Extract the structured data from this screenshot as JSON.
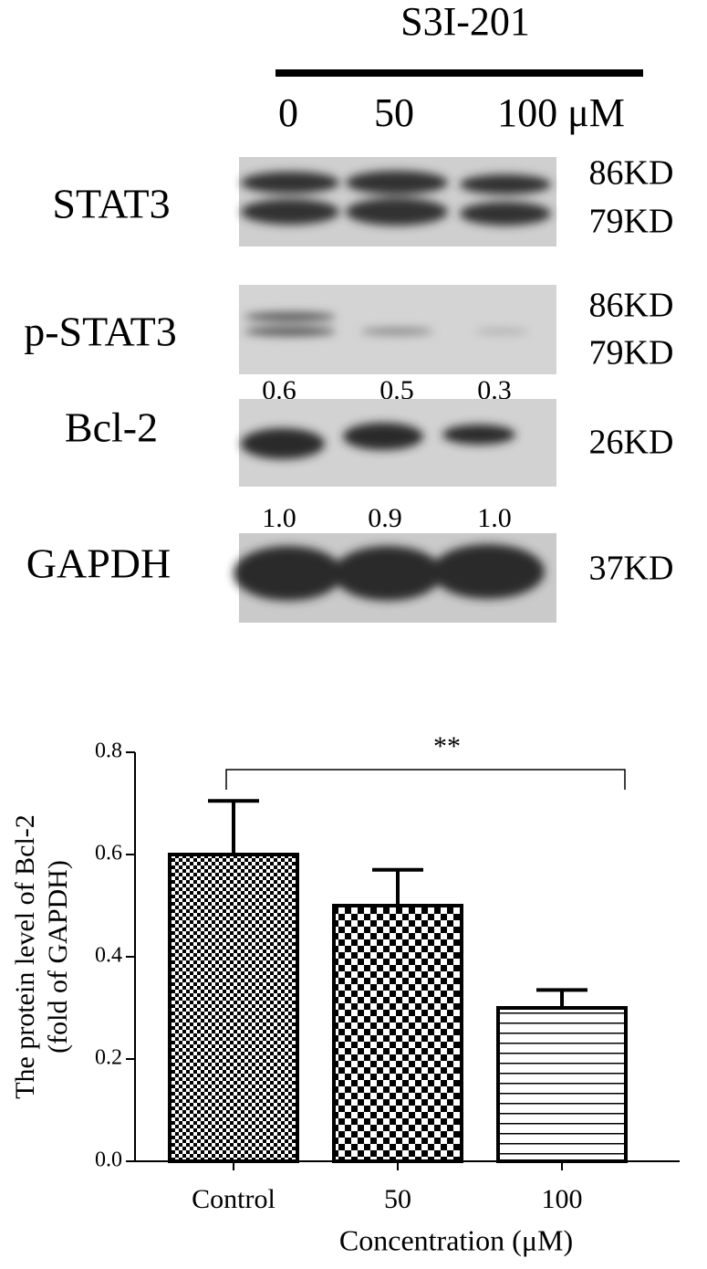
{
  "blot": {
    "treatment": "S3I-201",
    "lanes": [
      "0",
      "50",
      "100 μM"
    ],
    "rows": [
      {
        "label": "STAT3",
        "kd": [
          "86KD",
          "79KD"
        ]
      },
      {
        "label": "p-STAT3",
        "kd": [
          "86KD",
          "79KD"
        ]
      },
      {
        "label": "Bcl-2",
        "kd": [
          "26KD"
        ],
        "quant": [
          "0.6",
          "0.5",
          "0.3"
        ]
      },
      {
        "label": "GAPDH",
        "kd": [
          "37KD"
        ],
        "quant": [
          "1.0",
          "0.9",
          "1.0"
        ]
      }
    ]
  },
  "chart_data": {
    "type": "bar",
    "categories": [
      "Control",
      "50",
      "100"
    ],
    "values": [
      0.6,
      0.5,
      0.3
    ],
    "errors": [
      0.105,
      0.07,
      0.035
    ],
    "ylim": [
      0,
      0.8
    ],
    "yticks": [
      {
        "value": 0,
        "label": "0.0"
      },
      0.2,
      0.4,
      0.6,
      0.8
    ],
    "ylabel": [
      "The protein level of Bcl-2",
      "(fold of GAPDH)"
    ],
    "xlabel": "Concentration (μM)",
    "annotation": "**"
  }
}
